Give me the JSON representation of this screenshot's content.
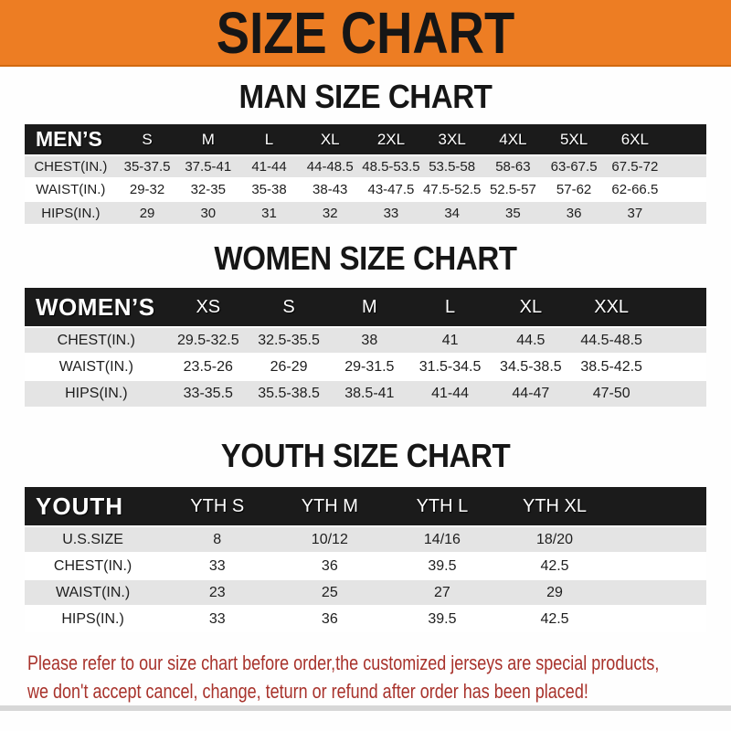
{
  "banner": {
    "title": "SIZE CHART"
  },
  "colors": {
    "banner_bg": "#ED7D23",
    "header_bar": "#1B1B1B",
    "row_alt": "#E4E4E4",
    "footer_text": "#A8322B"
  },
  "sections": [
    {
      "id": "men",
      "heading": "MAN SIZE CHART",
      "columns": [
        "MEN’S",
        "S",
        "M",
        "L",
        "XL",
        "2XL",
        "3XL",
        "4XL",
        "5XL",
        "6XL"
      ],
      "rows": [
        [
          "CHEST(IN.)",
          "35-37.5",
          "37.5-41",
          "41-44",
          "44-48.5",
          "48.5-53.5",
          "53.5-58",
          "58-63",
          "63-67.5",
          "67.5-72"
        ],
        [
          "WAIST(IN.)",
          "29-32",
          "32-35",
          "35-38",
          "38-43",
          "43-47.5",
          "47.5-52.5",
          "52.5-57",
          "57-62",
          "62-66.5"
        ],
        [
          "HIPS(IN.)",
          "29",
          "30",
          "31",
          "32",
          "33",
          "34",
          "35",
          "36",
          "37"
        ]
      ]
    },
    {
      "id": "women",
      "heading": "WOMEN SIZE CHART",
      "columns": [
        "WOMEN’S",
        "XS",
        "S",
        "M",
        "L",
        "XL",
        "XXL"
      ],
      "rows": [
        [
          "CHEST(IN.)",
          "29.5-32.5",
          "32.5-35.5",
          "38",
          "41",
          "44.5",
          "44.5-48.5"
        ],
        [
          "WAIST(IN.)",
          "23.5-26",
          "26-29",
          "29-31.5",
          "31.5-34.5",
          "34.5-38.5",
          "38.5-42.5"
        ],
        [
          "HIPS(IN.)",
          "33-35.5",
          "35.5-38.5",
          "38.5-41",
          "41-44",
          "44-47",
          "47-50"
        ]
      ]
    },
    {
      "id": "youth",
      "heading": "YOUTH SIZE CHART",
      "columns": [
        "YOUTH",
        "YTH S",
        "YTH M",
        "YTH L",
        "YTH XL"
      ],
      "rows": [
        [
          "U.S.SIZE",
          "8",
          "10/12",
          "14/16",
          "18/20"
        ],
        [
          "CHEST(IN.)",
          "33",
          "36",
          "39.5",
          "42.5"
        ],
        [
          "WAIST(IN.)",
          "23",
          "25",
          "27",
          "29"
        ],
        [
          "HIPS(IN.)",
          "33",
          "36",
          "39.5",
          "42.5"
        ]
      ]
    }
  ],
  "footer": {
    "line1": "Please refer to our size chart before order,the customized jerseys are special products,",
    "line2": "we don't accept cancel, change, teturn or refund after order has been placed!"
  }
}
